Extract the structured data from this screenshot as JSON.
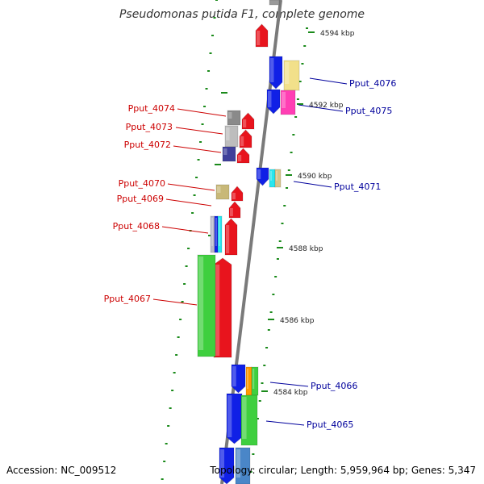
{
  "title": "Pseudomonas putida F1, complete genome",
  "footer": {
    "accession": "Accession: NC_009512",
    "topology": "Topology: circular; Length: 5,959,964 bp; Genes: 5,347"
  },
  "colors": {
    "backbone": "#7a7a7a",
    "forward_gene": "#e8141d",
    "reverse_gene": "#1020e6",
    "cds_green": "#3fcf3f",
    "tick": "#1a8a1a",
    "forward_label": "#cc0000",
    "reverse_label": "#00009c",
    "scale_label": "#222222"
  },
  "scale_labels": [
    "4594 kbp",
    "4592 kbp",
    "4590 kbp",
    "4588 kbp",
    "4586 kbp",
    "4584 kbp"
  ],
  "gene_labels_forward": [
    "Pput_4074",
    "Pput_4073",
    "Pput_4072",
    "Pput_4070",
    "Pput_4069",
    "Pput_4068",
    "Pput_4067"
  ],
  "gene_labels_reverse": [
    "Pput_4076",
    "Pput_4075",
    "Pput_4071",
    "Pput_4066",
    "Pput_4065"
  ]
}
